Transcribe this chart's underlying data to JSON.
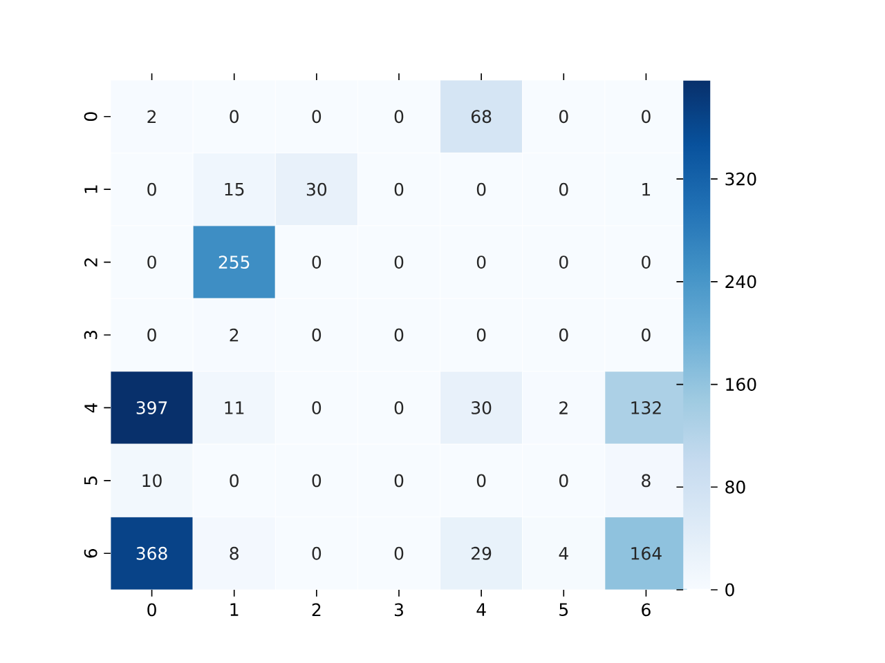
{
  "chart_data": {
    "type": "heatmap",
    "categories": [
      "0",
      "1",
      "2",
      "3",
      "4",
      "5",
      "6"
    ],
    "y_categories": [
      "0",
      "1",
      "2",
      "3",
      "4",
      "5",
      "6"
    ],
    "cells": [
      [
        2,
        0,
        0,
        0,
        68,
        0,
        0
      ],
      [
        0,
        15,
        30,
        0,
        0,
        0,
        1
      ],
      [
        0,
        255,
        0,
        0,
        0,
        0,
        0
      ],
      [
        0,
        2,
        0,
        0,
        0,
        0,
        0
      ],
      [
        397,
        11,
        0,
        0,
        30,
        2,
        132
      ],
      [
        10,
        0,
        0,
        0,
        0,
        0,
        8
      ],
      [
        368,
        8,
        0,
        0,
        29,
        4,
        164
      ]
    ],
    "clim": [
      0,
      397
    ],
    "cticks": [
      0,
      80,
      160,
      240,
      320
    ],
    "data_labels": true
  }
}
